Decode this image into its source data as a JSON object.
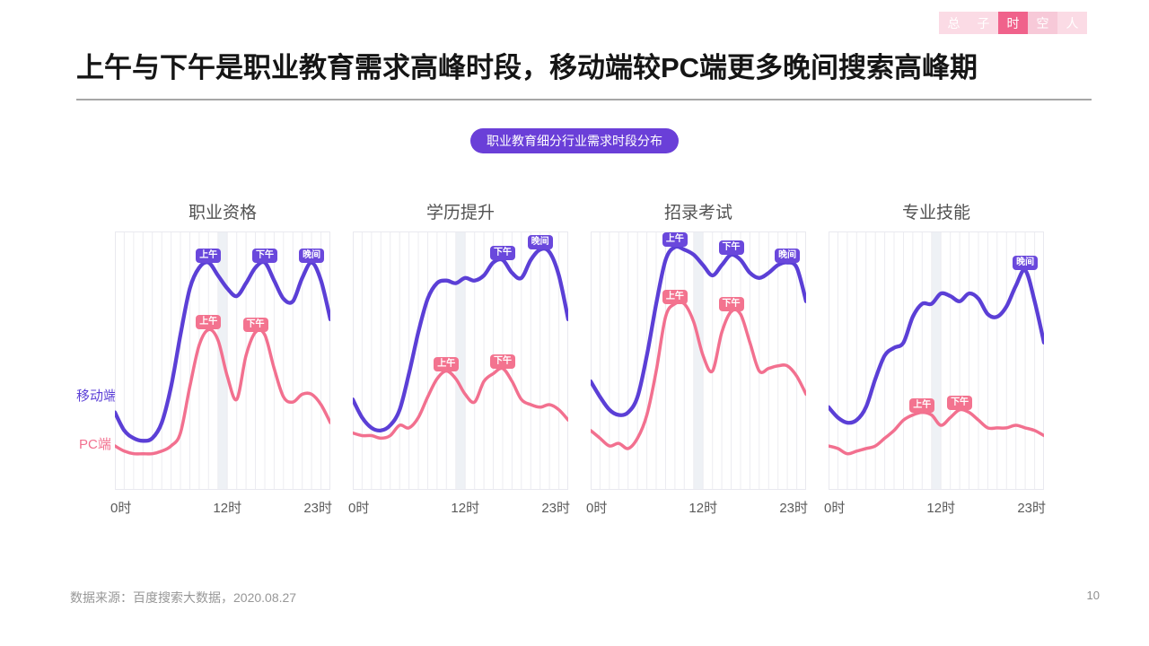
{
  "nav": {
    "tabs": [
      {
        "label": "总",
        "variant": "light",
        "active": false
      },
      {
        "label": "子",
        "variant": "light",
        "active": false
      },
      {
        "label": "时",
        "variant": "active",
        "active": true
      },
      {
        "label": "空",
        "variant": "medium",
        "active": false
      },
      {
        "label": "人",
        "variant": "light",
        "active": false
      }
    ]
  },
  "title": "上午与下午是职业教育需求高峰时段，移动端较PC端更多晚间搜索高峰期",
  "section_pill": "职业教育细分行业需求时段分布",
  "legend": {
    "position": "left-of-first-chart",
    "items": [
      {
        "label": "移动端",
        "color": "#5B3FD6"
      },
      {
        "label": "PC端",
        "color": "#F2708F"
      }
    ]
  },
  "footer": {
    "source": "数据来源：百度搜索大数据，2020.08.27",
    "page_number": "10"
  },
  "colors": {
    "accent_purple": "#5B3FD6",
    "accent_pink": "#F2708F",
    "badge_purple": "#6A48DC",
    "badge_pink": "#F3738F",
    "pill_bg": "#6A3FD8",
    "nav_light": "#FBDBE5",
    "nav_medium": "#F7C9D8",
    "nav_active": "#F0628B",
    "grid": "#ECECF1",
    "band": "#EEF1F5",
    "plot_border": "#E9E9EF"
  },
  "chart_data": [
    {
      "type": "line",
      "title": "职业资格",
      "x": [
        0,
        1,
        2,
        3,
        4,
        5,
        6,
        7,
        8,
        9,
        10,
        11,
        12,
        13,
        14,
        15,
        16,
        17,
        18,
        19,
        20,
        21,
        22,
        23
      ],
      "x_ticks": [
        "0时",
        "12时",
        "23时"
      ],
      "ylim": [
        0,
        100
      ],
      "grid": true,
      "highlight_band_hours": [
        11,
        12
      ],
      "series": [
        {
          "name": "移动端",
          "color": "#5B3FD6",
          "values": [
            30,
            23,
            20,
            19,
            20,
            26,
            40,
            60,
            78,
            86,
            88,
            83,
            78,
            75,
            80,
            86,
            88,
            81,
            74,
            73,
            82,
            88,
            81,
            66
          ]
        },
        {
          "name": "PC端",
          "color": "#F2708F",
          "values": [
            17,
            15,
            14,
            14,
            14,
            15,
            17,
            22,
            40,
            56,
            62,
            58,
            44,
            35,
            52,
            61,
            60,
            47,
            36,
            34,
            37,
            37,
            33,
            26
          ]
        }
      ],
      "annotations": [
        {
          "series": 0,
          "hour": 10,
          "label": "上午"
        },
        {
          "series": 0,
          "hour": 16,
          "label": "下午"
        },
        {
          "series": 0,
          "hour": 21,
          "label": "晚间"
        },
        {
          "series": 1,
          "hour": 10,
          "label": "上午"
        },
        {
          "series": 1,
          "hour": 15,
          "label": "下午"
        }
      ]
    },
    {
      "type": "line",
      "title": "学历提升",
      "x": [
        0,
        1,
        2,
        3,
        4,
        5,
        6,
        7,
        8,
        9,
        10,
        11,
        12,
        13,
        14,
        15,
        16,
        17,
        18,
        19,
        20,
        21,
        22,
        23
      ],
      "x_ticks": [
        "0时",
        "12时",
        "23时"
      ],
      "ylim": [
        0,
        100
      ],
      "grid": true,
      "highlight_band_hours": [
        11,
        12
      ],
      "series": [
        {
          "name": "移动端",
          "color": "#5B3FD6",
          "values": [
            35,
            28,
            24,
            23,
            25,
            31,
            45,
            61,
            74,
            80,
            81,
            80,
            82,
            81,
            83,
            88,
            89,
            84,
            82,
            89,
            93,
            92,
            83,
            66
          ]
        },
        {
          "name": "PC端",
          "color": "#F2708F",
          "values": [
            22,
            21,
            21,
            20,
            21,
            25,
            24,
            28,
            36,
            43,
            46,
            43,
            37,
            34,
            42,
            45,
            47,
            42,
            35,
            33,
            32,
            33,
            31,
            27
          ]
        }
      ],
      "annotations": [
        {
          "series": 0,
          "hour": 16,
          "label": "下午"
        },
        {
          "series": 0,
          "hour": 20,
          "label": "晚间"
        },
        {
          "series": 1,
          "hour": 10,
          "label": "上午"
        },
        {
          "series": 1,
          "hour": 16,
          "label": "下午"
        }
      ]
    },
    {
      "type": "line",
      "title": "招录考试",
      "x": [
        0,
        1,
        2,
        3,
        4,
        5,
        6,
        7,
        8,
        9,
        10,
        11,
        12,
        13,
        14,
        15,
        16,
        17,
        18,
        19,
        20,
        21,
        22,
        23
      ],
      "x_ticks": [
        "0时",
        "12时",
        "23时"
      ],
      "ylim": [
        0,
        100
      ],
      "grid": true,
      "highlight_band_hours": [
        11,
        12
      ],
      "series": [
        {
          "name": "移动端",
          "color": "#5B3FD6",
          "values": [
            42,
            36,
            31,
            29,
            30,
            36,
            52,
            72,
            89,
            94,
            93,
            91,
            87,
            83,
            87,
            91,
            89,
            84,
            82,
            84,
            87,
            88,
            86,
            73
          ]
        },
        {
          "name": "PC端",
          "color": "#F2708F",
          "values": [
            23,
            20,
            17,
            18,
            16,
            20,
            29,
            46,
            67,
            72,
            72,
            65,
            52,
            46,
            61,
            69,
            68,
            57,
            46,
            47,
            48,
            48,
            44,
            37
          ]
        }
      ],
      "annotations": [
        {
          "series": 0,
          "hour": 9,
          "label": "上午"
        },
        {
          "series": 0,
          "hour": 15,
          "label": "下午"
        },
        {
          "series": 0,
          "hour": 21,
          "label": "晚间"
        },
        {
          "series": 1,
          "hour": 9,
          "label": "上午"
        },
        {
          "series": 1,
          "hour": 15,
          "label": "下午"
        }
      ]
    },
    {
      "type": "line",
      "title": "专业技能",
      "x": [
        0,
        1,
        2,
        3,
        4,
        5,
        6,
        7,
        8,
        9,
        10,
        11,
        12,
        13,
        14,
        15,
        16,
        17,
        18,
        19,
        20,
        21,
        22,
        23
      ],
      "x_ticks": [
        "0时",
        "12时",
        "23时"
      ],
      "ylim": [
        0,
        100
      ],
      "grid": true,
      "highlight_band_hours": [
        11,
        12
      ],
      "series": [
        {
          "name": "移动端",
          "color": "#5B3FD6",
          "values": [
            32,
            28,
            26,
            27,
            32,
            43,
            52,
            55,
            57,
            67,
            72,
            72,
            76,
            75,
            73,
            76,
            74,
            68,
            67,
            71,
            79,
            85,
            73,
            57
          ]
        },
        {
          "name": "PC端",
          "color": "#F2708F",
          "values": [
            17,
            16,
            14,
            15,
            16,
            17,
            20,
            23,
            27,
            29,
            30,
            29,
            25,
            28,
            31,
            30,
            27,
            24,
            24,
            24,
            25,
            24,
            23,
            21
          ]
        }
      ],
      "annotations": [
        {
          "series": 0,
          "hour": 21,
          "label": "晚间"
        },
        {
          "series": 1,
          "hour": 10,
          "label": "上午"
        },
        {
          "series": 1,
          "hour": 14,
          "label": "下午"
        }
      ]
    }
  ]
}
